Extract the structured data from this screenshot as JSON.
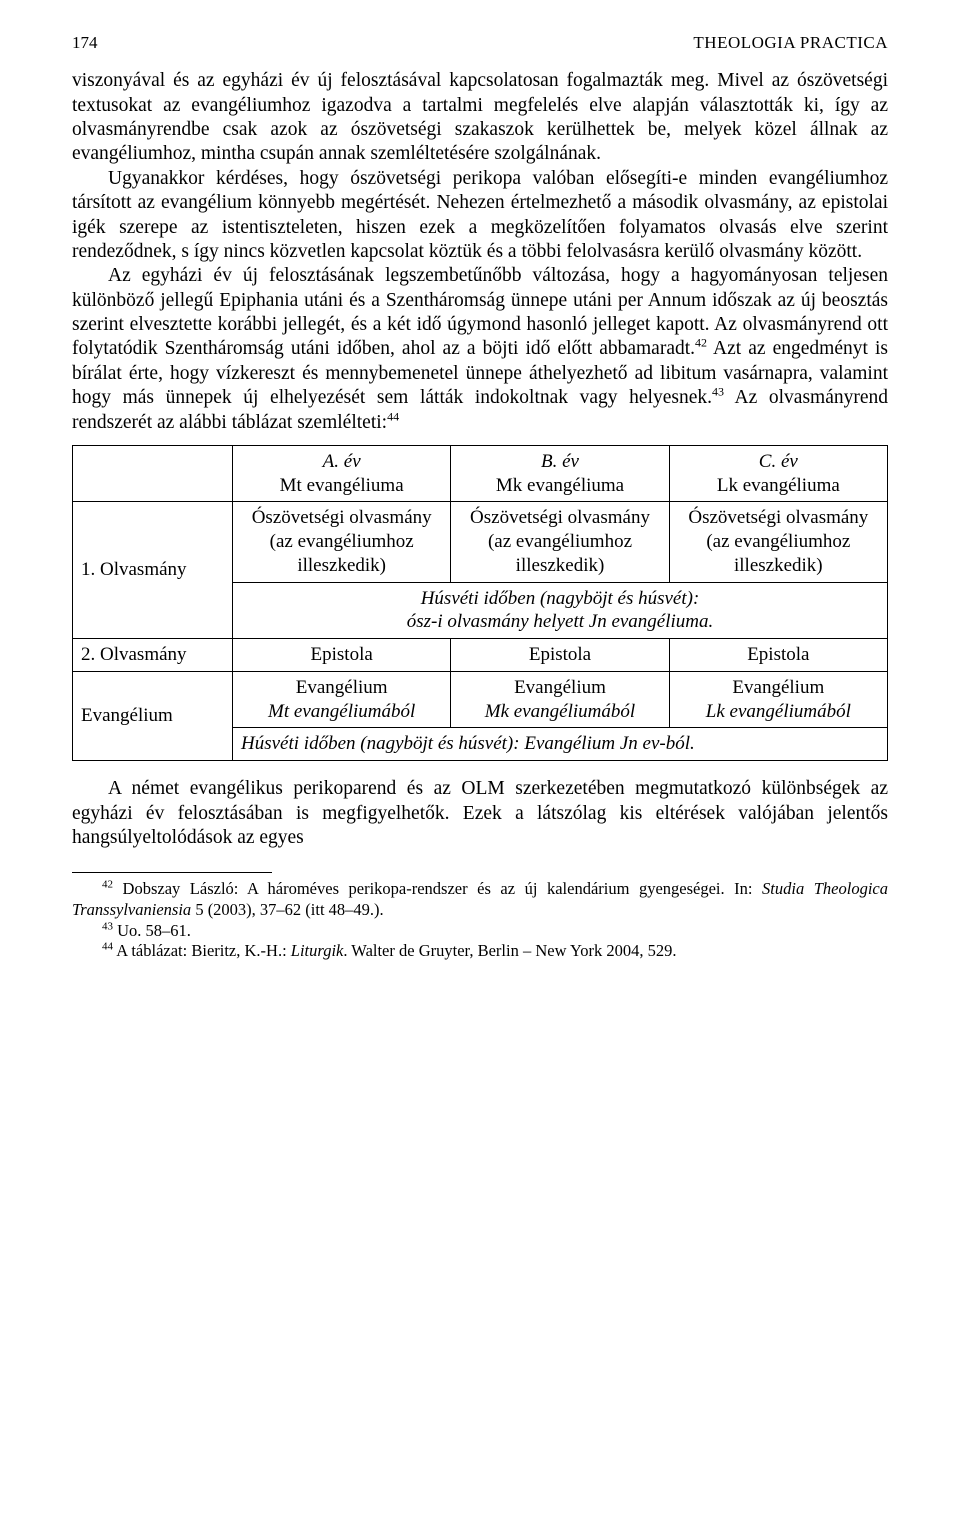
{
  "header": {
    "page_number": "174",
    "running_title": "THEOLOGIA PRACTICA"
  },
  "paragraphs": {
    "p1": "viszonyával és az egyházi év új felosztásával kapcsolatosan fogalmazták meg. Mivel az ószövetségi textusokat az evangéliumhoz igazodva a tartalmi megfelelés elve alapján választották ki, így az olvasmányrendbe csak azok az ószövetségi szakaszok kerülhettek be, melyek közel állnak az evangéliumhoz, mintha csupán annak szemléltetésére szolgálnának.",
    "p2": "Ugyanakkor kérdéses, hogy ószövetségi perikopa valóban elősegíti-e minden evangéliumhoz társított az evangélium könnyebb megértését. Nehezen értelmezhető a második olvasmány, az epistolai igék szerepe az istentiszteleten, hiszen ezek a megközelítően folyamatos olvasás elve szerint rendeződnek, s így nincs közvetlen kapcsolat köztük és a többi felolvasásra kerülő olvasmány között.",
    "p3a": "Az egyházi év új felosztásának legszembetűnőbb változása, hogy a hagyományosan teljesen különböző jellegű Epiphania utáni és a Szentháromság ünnepe utáni per Annum időszak az új beosztás szerint elvesztette korábbi jellegét, és a két idő úgymond hasonló jelleget kapott. Az olvasmányrend ott folytatódik Szentháromság utáni időben, ahol az a böjti idő előtt abbamaradt.",
    "p3b": " Azt az engedményt is bírálat érte, hogy vízkereszt és mennybemenetel ünnepe áthelyezhető ad libitum vasárnapra, valamint hogy más ünnepek új elhelyezését sem látták indokoltnak vagy helyesnek.",
    "p3c": " Az olvasmányrend rendszerét az alábbi táblázat szemlélteti:",
    "p4": "A német evangélikus perikoparend és az OLM szerkezetében megmutatkozó különbségek az egyházi év felosztásában is megfigyelhetők. Ezek a látszólag kis eltérések valójában jelentős hangsúlyeltolódások az egyes"
  },
  "refs": {
    "r42": "42",
    "r43": "43",
    "r44": "44"
  },
  "table": {
    "head": {
      "a_year": "A. év",
      "a_gospel": "Mt evangéliuma",
      "b_year": "B. év",
      "b_gospel": "Mk evangéliuma",
      "c_year": "C. év",
      "c_gospel": "Lk evangéliuma"
    },
    "row1": {
      "label": "1. Olvasmány",
      "a": "Ószövetségi olvasmány (az evangéliumhoz illeszkedik)",
      "b": "Ószövetségi olvasmány (az evangéliumhoz illeszkedik)",
      "c": "Ószövetségi olvasmány (az evangéliumhoz illeszkedik)",
      "note_line1": "Húsvéti időben (nagyböjt és húsvét):",
      "note_line2": "ósz-i olvasmány helyett Jn evangéliuma."
    },
    "row2": {
      "label": "2. Olvasmány",
      "a": "Epistola",
      "b": "Epistola",
      "c": "Epistola"
    },
    "row3": {
      "label": "Evangélium",
      "a_t": "Evangélium",
      "a_i": "Mt evangéliumából",
      "b_t": "Evangélium",
      "b_i": "Mk evangéliumából",
      "c_t": "Evangélium",
      "c_i": "Lk evangéliumából",
      "note": "Húsvéti időben (nagyböjt és húsvét): Evangélium Jn ev-ból."
    }
  },
  "footnotes": {
    "f42_num": "42",
    "f42_a": " Dobszay László: A hároméves perikopa-rendszer és az új kalendárium gyengeségei. In: ",
    "f42_i": "Studia Theologica Transsylvaniensia",
    "f42_b": " 5 (2003), 37–62 (itt 48–49.).",
    "f43_num": "43",
    "f43": " Uo. 58–61.",
    "f44_num": "44",
    "f44_a": " A táblázat: Bieritz, K.-H.: ",
    "f44_i": "Liturgik",
    "f44_b": ". Walter de Gruyter, Berlin – New York 2004, 529."
  }
}
